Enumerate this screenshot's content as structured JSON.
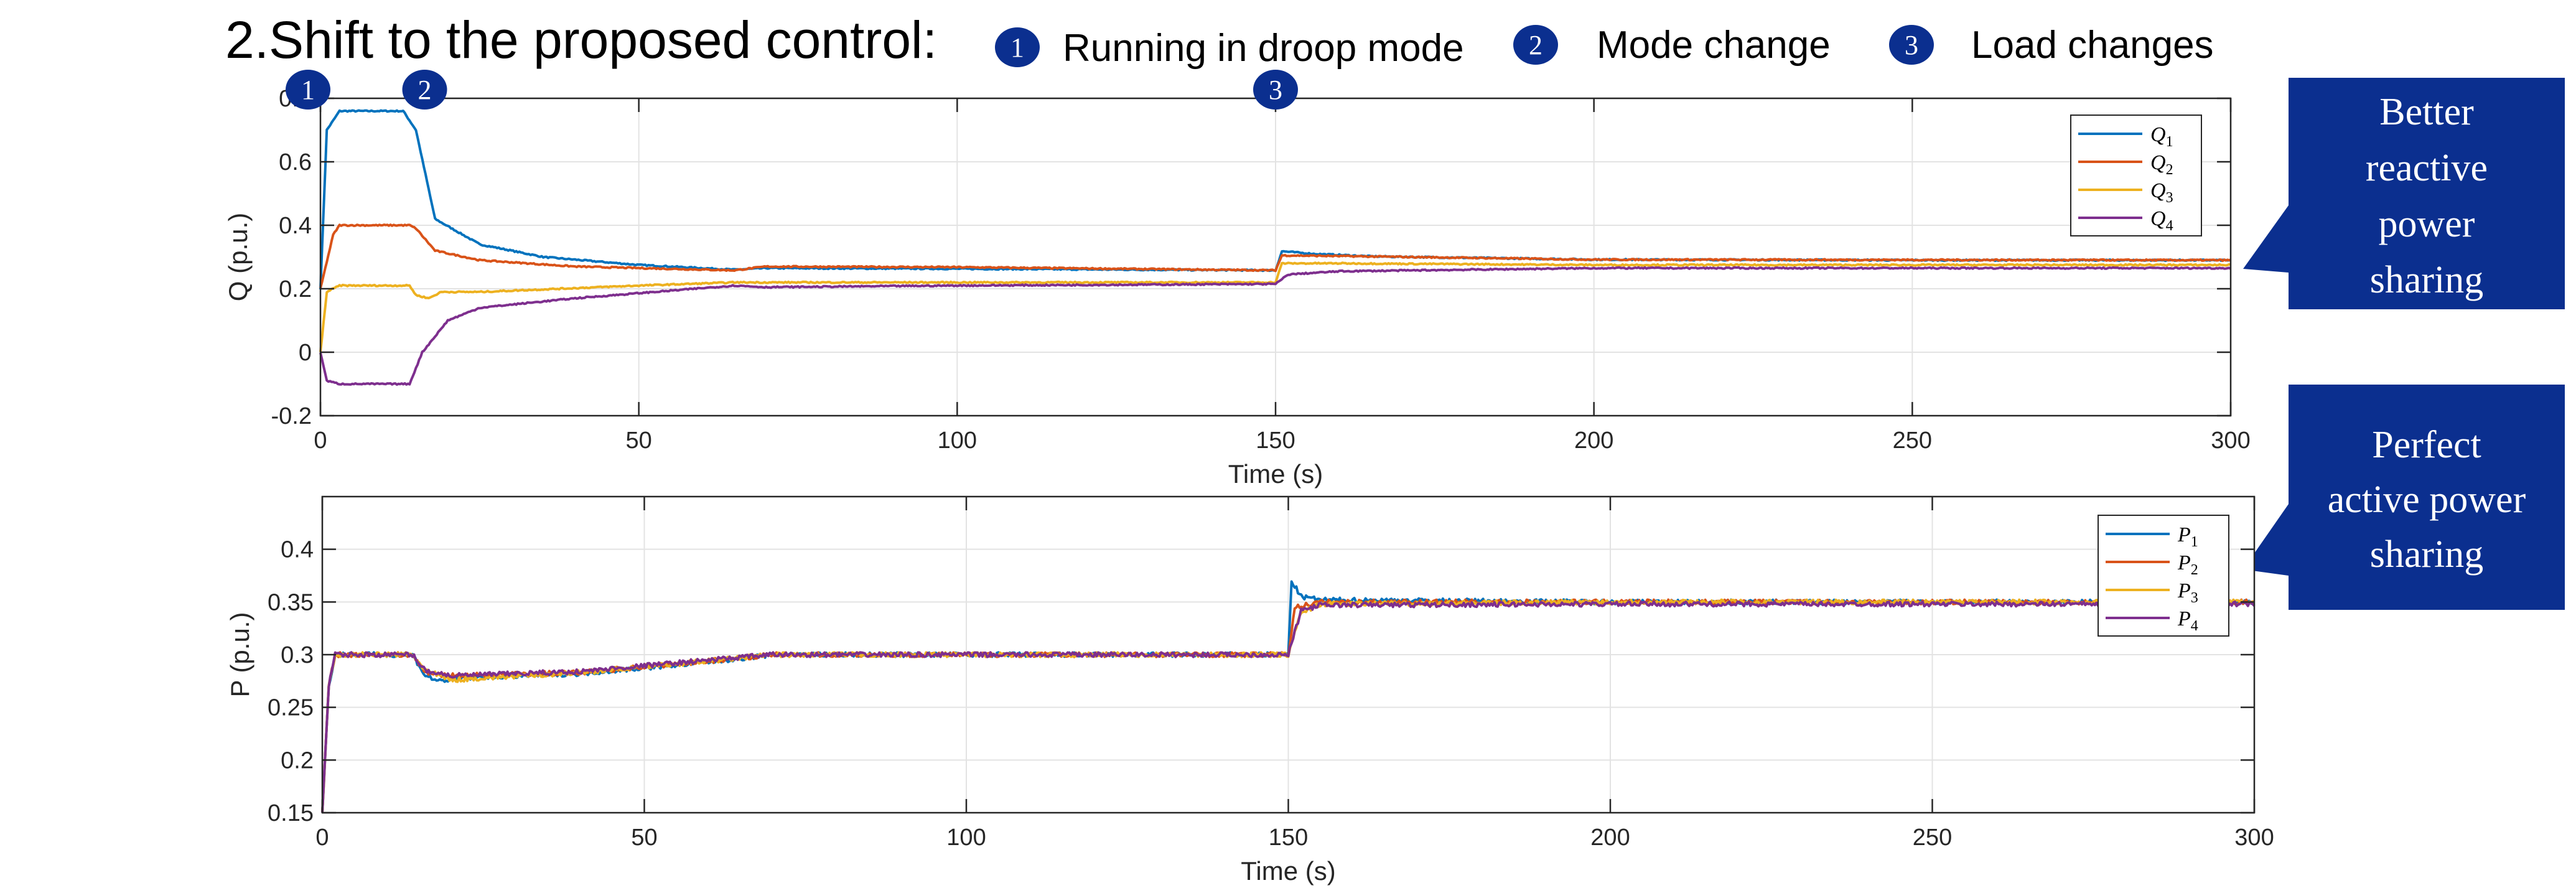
{
  "slide": {
    "title": "2.Shift to the proposed control:",
    "steps": [
      {
        "num": "1",
        "label": "Running in droop mode"
      },
      {
        "num": "2",
        "label": "Mode change"
      },
      {
        "num": "3",
        "label": "Load changes"
      }
    ],
    "callouts": [
      {
        "lines": [
          "Better",
          "reactive",
          "power",
          "sharing"
        ]
      },
      {
        "lines": [
          "Perfect",
          "active power",
          "sharing"
        ]
      }
    ]
  },
  "colors": {
    "series": [
      "#0072BD",
      "#D95319",
      "#EDB120",
      "#7E2F8E"
    ],
    "marker_fill": "#0B2F8F",
    "callout_fill": "#0B2F8F",
    "grid": "#E3E3E3",
    "axis": "#262626"
  },
  "chart_data": [
    {
      "type": "line",
      "xlabel": "Time (s)",
      "ylabel": "Q (p.u.)",
      "xlim": [
        0,
        300
      ],
      "ylim": [
        -0.2,
        0.8
      ],
      "xticks": [
        0,
        50,
        100,
        150,
        200,
        250,
        300
      ],
      "yticks": [
        -0.2,
        0,
        0.2,
        0.4,
        0.6,
        0.8
      ],
      "ytick_labels": [
        "-0.2",
        "0",
        "0.2",
        "0.4",
        "0.6",
        "0.8"
      ],
      "grid": true,
      "legend": "top-right",
      "event_markers": [
        {
          "label": "1",
          "x": 0
        },
        {
          "label": "2",
          "x": 15
        },
        {
          "label": "3",
          "x": 150
        }
      ],
      "series": [
        {
          "name": "Q1",
          "legend_main": "Q",
          "legend_sub": "1",
          "noise": 0.002,
          "points": [
            [
              0,
              0.2
            ],
            [
              1,
              0.7
            ],
            [
              3,
              0.76
            ],
            [
              13,
              0.76
            ],
            [
              15,
              0.7
            ],
            [
              18,
              0.42
            ],
            [
              25,
              0.34
            ],
            [
              35,
              0.3
            ],
            [
              50,
              0.275
            ],
            [
              65,
              0.26
            ],
            [
              70,
              0.265
            ],
            [
              100,
              0.263
            ],
            [
              150,
              0.258
            ],
            [
              151,
              0.318
            ],
            [
              156,
              0.31
            ],
            [
              165,
              0.302
            ],
            [
              200,
              0.292
            ],
            [
              250,
              0.29
            ],
            [
              300,
              0.29
            ]
          ]
        },
        {
          "name": "Q2",
          "legend_main": "Q",
          "legend_sub": "2",
          "noise": 0.002,
          "points": [
            [
              0,
              0.2
            ],
            [
              2,
              0.37
            ],
            [
              3,
              0.4
            ],
            [
              14,
              0.4
            ],
            [
              15,
              0.39
            ],
            [
              18,
              0.32
            ],
            [
              25,
              0.29
            ],
            [
              40,
              0.27
            ],
            [
              65,
              0.258
            ],
            [
              70,
              0.27
            ],
            [
              100,
              0.268
            ],
            [
              150,
              0.258
            ],
            [
              151,
              0.305
            ],
            [
              160,
              0.303
            ],
            [
              200,
              0.292
            ],
            [
              300,
              0.29
            ]
          ]
        },
        {
          "name": "Q3",
          "legend_main": "Q",
          "legend_sub": "3",
          "noise": 0.002,
          "points": [
            [
              0,
              0.0
            ],
            [
              1,
              0.19
            ],
            [
              3,
              0.21
            ],
            [
              14,
              0.21
            ],
            [
              15,
              0.18
            ],
            [
              17,
              0.17
            ],
            [
              19,
              0.19
            ],
            [
              25,
              0.19
            ],
            [
              50,
              0.21
            ],
            [
              65,
              0.22
            ],
            [
              70,
              0.22
            ],
            [
              100,
              0.22
            ],
            [
              150,
              0.22
            ],
            [
              151,
              0.28
            ],
            [
              160,
              0.28
            ],
            [
              200,
              0.275
            ],
            [
              300,
              0.275
            ]
          ]
        },
        {
          "name": "Q4",
          "legend_main": "Q",
          "legend_sub": "4",
          "noise": 0.002,
          "points": [
            [
              0,
              0.0
            ],
            [
              1,
              -0.09
            ],
            [
              3,
              -0.1
            ],
            [
              14,
              -0.1
            ],
            [
              16,
              0.0
            ],
            [
              20,
              0.1
            ],
            [
              25,
              0.14
            ],
            [
              40,
              0.17
            ],
            [
              65,
              0.21
            ],
            [
              70,
              0.205
            ],
            [
              100,
              0.21
            ],
            [
              150,
              0.215
            ],
            [
              152,
              0.245
            ],
            [
              160,
              0.255
            ],
            [
              200,
              0.265
            ],
            [
              300,
              0.265
            ]
          ]
        }
      ]
    },
    {
      "type": "line",
      "xlabel": "Time (s)",
      "ylabel": "P (p.u.)",
      "xlim": [
        0,
        300
      ],
      "ylim": [
        0.15,
        0.45
      ],
      "xticks": [
        0,
        50,
        100,
        150,
        200,
        250,
        300
      ],
      "yticks": [
        0.15,
        0.2,
        0.25,
        0.3,
        0.35,
        0.4
      ],
      "ytick_labels": [
        "0.15",
        "0.2",
        "0.25",
        "0.3",
        "0.35",
        "0.4"
      ],
      "grid": true,
      "legend": "top-right",
      "series": [
        {
          "name": "P1",
          "legend_main": "P",
          "legend_sub": "1",
          "noise": 0.0022,
          "points": [
            [
              0,
              0.15
            ],
            [
              1,
              0.27
            ],
            [
              2,
              0.3
            ],
            [
              14,
              0.3
            ],
            [
              16,
              0.28
            ],
            [
              18,
              0.275
            ],
            [
              22,
              0.278
            ],
            [
              40,
              0.282
            ],
            [
              60,
              0.293
            ],
            [
              70,
              0.3
            ],
            [
              100,
              0.3
            ],
            [
              150,
              0.3
            ],
            [
              150.5,
              0.37
            ],
            [
              152,
              0.355
            ],
            [
              155,
              0.352
            ],
            [
              200,
              0.35
            ],
            [
              300,
              0.35
            ]
          ]
        },
        {
          "name": "P2",
          "legend_main": "P",
          "legend_sub": "2",
          "noise": 0.0022,
          "points": [
            [
              0,
              0.15
            ],
            [
              1,
              0.27
            ],
            [
              2,
              0.3
            ],
            [
              14,
              0.3
            ],
            [
              16,
              0.283
            ],
            [
              20,
              0.28
            ],
            [
              40,
              0.283
            ],
            [
              60,
              0.294
            ],
            [
              70,
              0.3
            ],
            [
              100,
              0.3
            ],
            [
              150,
              0.3
            ],
            [
              151,
              0.345
            ],
            [
              155,
              0.35
            ],
            [
              200,
              0.35
            ],
            [
              300,
              0.35
            ]
          ]
        },
        {
          "name": "P3",
          "legend_main": "P",
          "legend_sub": "3",
          "noise": 0.0022,
          "points": [
            [
              0,
              0.15
            ],
            [
              1,
              0.27
            ],
            [
              2,
              0.3
            ],
            [
              14,
              0.3
            ],
            [
              16,
              0.285
            ],
            [
              20,
              0.276
            ],
            [
              40,
              0.283
            ],
            [
              60,
              0.294
            ],
            [
              70,
              0.3
            ],
            [
              100,
              0.3
            ],
            [
              150,
              0.3
            ],
            [
              152,
              0.34
            ],
            [
              155,
              0.348
            ],
            [
              200,
              0.35
            ],
            [
              300,
              0.35
            ]
          ]
        },
        {
          "name": "P4",
          "legend_main": "P",
          "legend_sub": "4",
          "noise": 0.0022,
          "points": [
            [
              0,
              0.15
            ],
            [
              1,
              0.27
            ],
            [
              2,
              0.3
            ],
            [
              14,
              0.3
            ],
            [
              16,
              0.285
            ],
            [
              20,
              0.28
            ],
            [
              40,
              0.284
            ],
            [
              60,
              0.295
            ],
            [
              70,
              0.3
            ],
            [
              100,
              0.3
            ],
            [
              150,
              0.3
            ],
            [
              152,
              0.342
            ],
            [
              155,
              0.347
            ],
            [
              200,
              0.348
            ],
            [
              300,
              0.348
            ]
          ]
        }
      ]
    }
  ]
}
